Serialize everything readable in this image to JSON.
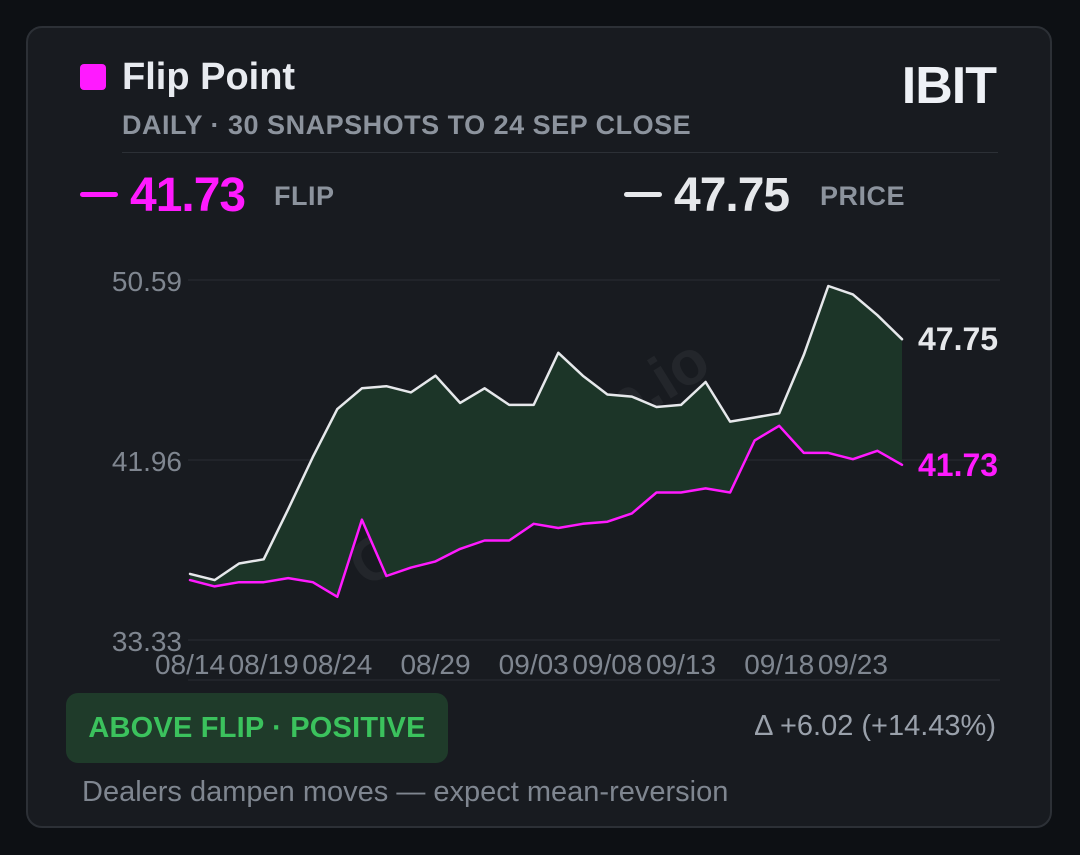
{
  "header": {
    "title": "Flip Point",
    "subtitle": "DAILY · 30 SNAPSHOTS TO 24 SEP CLOSE",
    "ticker": "IBIT"
  },
  "metrics": {
    "flip": {
      "value": "41.73",
      "label": "FLIP"
    },
    "price": {
      "value": "47.75",
      "label": "PRICE"
    }
  },
  "watermark": "GammaFlip.io",
  "status": {
    "badge": "ABOVE FLIP · POSITIVE",
    "delta": "Δ +6.02 (+14.43%)",
    "note": "Dealers dampen moves — expect mean-reversion"
  },
  "colors": {
    "flip": "#ff1aff",
    "price": "#e6e8eb",
    "fill": "#1c3528",
    "positive": "#3bc25d"
  },
  "chart_data": {
    "type": "line",
    "ylim": [
      33.33,
      50.59
    ],
    "yticks": [
      "50.59",
      "41.96",
      "33.33"
    ],
    "x_tick_labels": [
      "08/14",
      "08/19",
      "08/24",
      "08/29",
      "09/03",
      "09/08",
      "09/13",
      "09/18",
      "09/23"
    ],
    "x_tick_indices": [
      0,
      3,
      6,
      10,
      14,
      17,
      20,
      24,
      27
    ],
    "grid": true,
    "end_labels": {
      "price": "47.75",
      "flip": "41.73"
    },
    "series": [
      {
        "key": "price",
        "values": [
          36.5,
          36.2,
          37.0,
          37.2,
          39.6,
          42.1,
          44.4,
          45.4,
          45.5,
          45.2,
          46.0,
          44.7,
          45.4,
          44.6,
          44.6,
          47.1,
          46.0,
          45.1,
          45.0,
          44.5,
          44.6,
          45.7,
          43.8,
          44.0,
          44.2,
          47.0,
          50.3,
          49.9,
          48.9,
          47.75
        ]
      },
      {
        "key": "flip",
        "values": [
          36.2,
          35.9,
          36.1,
          36.1,
          36.3,
          36.1,
          35.4,
          39.1,
          36.4,
          36.8,
          37.1,
          37.7,
          38.1,
          38.1,
          38.9,
          38.7,
          38.9,
          39.0,
          39.4,
          40.4,
          40.4,
          40.6,
          40.4,
          42.9,
          43.6,
          42.3,
          42.3,
          42.0,
          42.4,
          41.73
        ]
      }
    ]
  }
}
